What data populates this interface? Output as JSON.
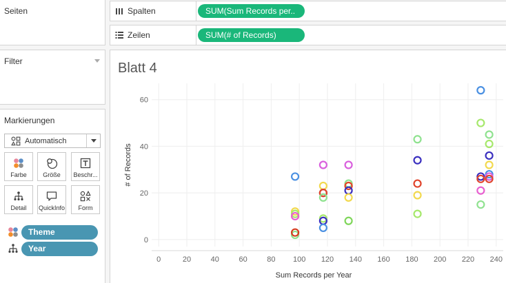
{
  "panels": {
    "seiten": "Seiten",
    "filter": "Filter",
    "marks": "Markierungen"
  },
  "marks_card": {
    "type_label": "Automatisch",
    "buttons": [
      {
        "label": "Farbe",
        "icon": "color-icon"
      },
      {
        "label": "Größe",
        "icon": "size-icon"
      },
      {
        "label": "Beschr...",
        "icon": "label-icon"
      },
      {
        "label": "Detail",
        "icon": "detail-icon"
      },
      {
        "label": "QuickInfo",
        "icon": "tooltip-icon"
      },
      {
        "label": "Form",
        "icon": "shape-icon"
      }
    ],
    "fields": [
      {
        "label": "Theme",
        "icon": "color-icon"
      },
      {
        "label": "Year",
        "icon": "detail-icon"
      }
    ]
  },
  "shelves": {
    "columns_label": "Spalten",
    "columns_pill": "SUM(Sum Records per..",
    "rows_label": "Zeilen",
    "rows_pill": "SUM(# of Records)"
  },
  "sheet": {
    "title": "Blatt 4"
  },
  "colors": {
    "pill_green": "#1ab77a",
    "pill_blue": "#4996b2"
  },
  "chart_data": {
    "type": "scatter",
    "xlabel": "Sum Records per Year",
    "ylabel": "# of Records",
    "xlim": [
      -5,
      245
    ],
    "ylim": [
      -3,
      67
    ],
    "xticks": [
      0,
      20,
      40,
      60,
      80,
      100,
      120,
      140,
      160,
      180,
      200,
      220,
      240
    ],
    "yticks": [
      0,
      20,
      40,
      60
    ],
    "grid": true,
    "marker": "open-circle",
    "points": [
      {
        "x": 97,
        "y": 27,
        "color": "#4a90e2"
      },
      {
        "x": 97,
        "y": 12,
        "color": "#f2d94e"
      },
      {
        "x": 97,
        "y": 11,
        "color": "#a6e86b"
      },
      {
        "x": 97,
        "y": 10,
        "color": "#e85fd0"
      },
      {
        "x": 97,
        "y": 2,
        "color": "#8fe28f"
      },
      {
        "x": 97,
        "y": 3,
        "color": "#d43b1e"
      },
      {
        "x": 117,
        "y": 32,
        "color": "#d95fdd"
      },
      {
        "x": 117,
        "y": 23,
        "color": "#f2d94e"
      },
      {
        "x": 117,
        "y": 20,
        "color": "#7a4a2e"
      },
      {
        "x": 117,
        "y": 20,
        "color": "#e0442c"
      },
      {
        "x": 117,
        "y": 18,
        "color": "#8fe28f"
      },
      {
        "x": 117,
        "y": 9,
        "color": "#a6e86b"
      },
      {
        "x": 117,
        "y": 8,
        "color": "#3a2fbf"
      },
      {
        "x": 117,
        "y": 5,
        "color": "#4a90e2"
      },
      {
        "x": 135,
        "y": 32,
        "color": "#d95fdd"
      },
      {
        "x": 135,
        "y": 24,
        "color": "#8fe28f"
      },
      {
        "x": 135,
        "y": 23,
        "color": "#f2d94e"
      },
      {
        "x": 135,
        "y": 23,
        "color": "#e0442c"
      },
      {
        "x": 135,
        "y": 21,
        "color": "#3a2fbf"
      },
      {
        "x": 135,
        "y": 18,
        "color": "#f2d94e"
      },
      {
        "x": 135,
        "y": 8,
        "color": "#7fd65a"
      },
      {
        "x": 184,
        "y": 43,
        "color": "#8fe28f"
      },
      {
        "x": 184,
        "y": 34,
        "color": "#3a2fbf"
      },
      {
        "x": 184,
        "y": 24,
        "color": "#e0442c"
      },
      {
        "x": 184,
        "y": 19,
        "color": "#f2d94e"
      },
      {
        "x": 184,
        "y": 11,
        "color": "#a6e86b"
      },
      {
        "x": 229,
        "y": 64,
        "color": "#4a90e2"
      },
      {
        "x": 229,
        "y": 50,
        "color": "#a6e86b"
      },
      {
        "x": 229,
        "y": 27,
        "color": "#3a2fbf"
      },
      {
        "x": 229,
        "y": 26,
        "color": "#e0442c"
      },
      {
        "x": 229,
        "y": 21,
        "color": "#e85fd0"
      },
      {
        "x": 229,
        "y": 15,
        "color": "#8fe28f"
      },
      {
        "x": 235,
        "y": 45,
        "color": "#8fe28f"
      },
      {
        "x": 235,
        "y": 41,
        "color": "#a6e86b"
      },
      {
        "x": 235,
        "y": 36,
        "color": "#3a2fbf"
      },
      {
        "x": 235,
        "y": 32,
        "color": "#f2d94e"
      },
      {
        "x": 235,
        "y": 28,
        "color": "#4a90e2"
      },
      {
        "x": 235,
        "y": 27,
        "color": "#d95fdd"
      },
      {
        "x": 235,
        "y": 26,
        "color": "#e0442c"
      }
    ]
  }
}
